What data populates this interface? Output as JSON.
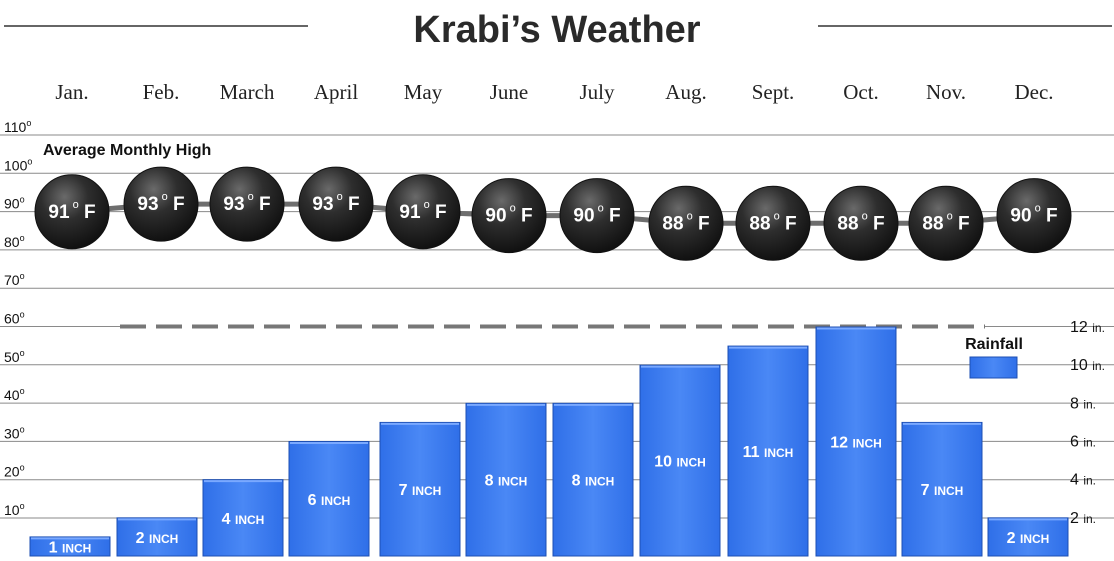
{
  "title": "Krabi’s Weather",
  "months": [
    "Jan.",
    "Feb.",
    "March",
    "April",
    "May",
    "June",
    "July",
    "Aug.",
    "Sept.",
    "Oct.",
    "Nov.",
    "Dec."
  ],
  "temperature_label": "Average Monthly High",
  "rainfall_label": "Rainfall",
  "temp_axis_degree": "o",
  "temp_unit": "F",
  "rain_unit_label": "INCH",
  "rain_axis_unit": "in.",
  "colors": {
    "bar": "#3f7ef0",
    "bar_light": "#7aa9ff",
    "ball": "#2b2b2b",
    "gridline": "#8a8a8a",
    "title": "#2a2a2a"
  },
  "chart_data": {
    "type": "bar",
    "title": "Krabi’s Weather",
    "categories": [
      "Jan.",
      "Feb.",
      "March",
      "April",
      "May",
      "June",
      "July",
      "Aug.",
      "Sept.",
      "Oct.",
      "Nov.",
      "Dec."
    ],
    "series": [
      {
        "name": "Average Monthly High",
        "unit": "°F",
        "type": "line",
        "values": [
          91,
          93,
          93,
          93,
          91,
          90,
          90,
          88,
          88,
          88,
          88,
          90
        ]
      },
      {
        "name": "Rainfall",
        "unit": "INCH",
        "type": "bar",
        "values": [
          1,
          2,
          4,
          6,
          7,
          8,
          8,
          10,
          11,
          12,
          7,
          2
        ]
      }
    ],
    "left_axis": {
      "ticks": [
        10,
        20,
        30,
        40,
        50,
        60,
        70,
        80,
        90,
        100,
        110
      ],
      "ylim": [
        0,
        110
      ]
    },
    "right_axis": {
      "ticks": [
        2,
        4,
        6,
        8,
        10,
        12
      ],
      "ylim": [
        0,
        12
      ]
    },
    "grid": true,
    "legend": "right"
  }
}
